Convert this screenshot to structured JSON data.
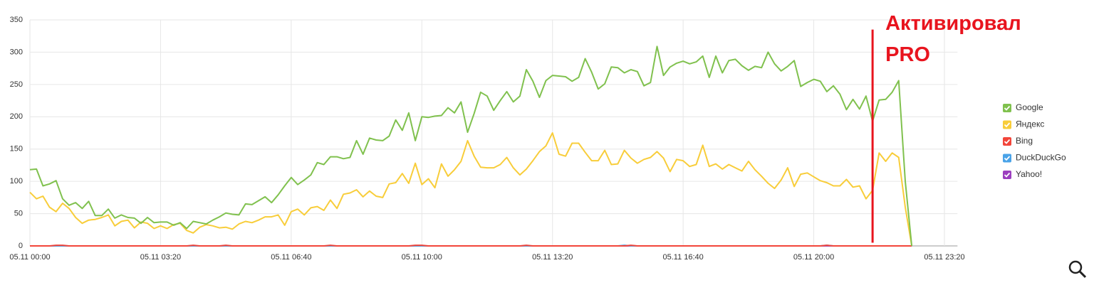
{
  "chart_data": {
    "type": "line",
    "x": [
      0,
      10,
      20,
      30,
      40,
      50,
      60,
      70,
      80,
      90,
      100,
      110,
      120,
      130,
      140,
      150,
      160,
      170,
      180,
      190,
      200,
      210,
      220,
      230,
      240,
      250,
      260,
      270,
      280,
      290,
      300,
      310,
      320,
      330,
      340,
      350,
      360,
      370,
      380,
      390,
      400,
      410,
      420,
      430,
      440,
      450,
      460,
      470,
      480,
      490,
      500,
      510,
      520,
      530,
      540,
      550,
      560,
      570,
      580,
      590,
      600,
      610,
      620,
      630,
      640,
      650,
      660,
      670,
      680,
      690,
      700,
      710,
      720,
      730,
      740,
      750,
      760,
      770,
      780,
      790,
      800,
      810,
      820,
      830,
      840,
      850,
      860,
      870,
      880,
      890,
      900,
      910,
      920,
      930,
      940,
      950,
      960,
      970,
      980,
      990,
      1000,
      1010,
      1020,
      1030,
      1040,
      1050,
      1060,
      1070,
      1080,
      1090,
      1100,
      1110,
      1120,
      1130,
      1140,
      1150,
      1160,
      1170,
      1180,
      1190,
      1200,
      1210,
      1220,
      1230,
      1240,
      1250,
      1260,
      1270,
      1280,
      1290,
      1300,
      1310,
      1320,
      1330,
      1340,
      1350
    ],
    "xlim": [
      0,
      1420
    ],
    "xticks": [
      {
        "value": 0,
        "label": "05.11 00:00"
      },
      {
        "value": 200,
        "label": "05.11 03:20"
      },
      {
        "value": 400,
        "label": "05.11 06:40"
      },
      {
        "value": 600,
        "label": "05.11 10:00"
      },
      {
        "value": 800,
        "label": "05.11 13:20"
      },
      {
        "value": 1000,
        "label": "05.11 16:40"
      },
      {
        "value": 1200,
        "label": "05.11 20:00"
      },
      {
        "value": 1400,
        "label": "05.11 23:20"
      }
    ],
    "ylim": [
      0,
      350
    ],
    "yticks": [
      0,
      50,
      100,
      150,
      200,
      250,
      300,
      350
    ],
    "grid": true,
    "legend": "right",
    "series": [
      {
        "name": "Google",
        "color": "#80c14e",
        "values": [
          118,
          119,
          93,
          96,
          101,
          73,
          63,
          67,
          58,
          69,
          47,
          47,
          57,
          43,
          48,
          44,
          43,
          35,
          44,
          36,
          37,
          37,
          32,
          36,
          27,
          38,
          36,
          34,
          40,
          45,
          51,
          49,
          48,
          65,
          64,
          70,
          76,
          67,
          79,
          93,
          106,
          95,
          102,
          110,
          129,
          126,
          138,
          138,
          135,
          137,
          163,
          142,
          167,
          164,
          163,
          170,
          195,
          179,
          206,
          163,
          200,
          199,
          201,
          202,
          214,
          206,
          223,
          176,
          205,
          238,
          232,
          210,
          225,
          239,
          223,
          232,
          273,
          255,
          230,
          256,
          264,
          263,
          262,
          255,
          261,
          290,
          269,
          243,
          251,
          277,
          276,
          268,
          273,
          270,
          248,
          253,
          309,
          264,
          277,
          283,
          286,
          282,
          285,
          294,
          261,
          294,
          268,
          287,
          289,
          279,
          272,
          278,
          276,
          300,
          282,
          271,
          278,
          287,
          247,
          253,
          258,
          255,
          239,
          248,
          235,
          211,
          227,
          212,
          232,
          193,
          226,
          227,
          238,
          256,
          100,
          0
        ]
      },
      {
        "name": "Яндекс",
        "color": "#f8cd3a",
        "values": [
          83,
          73,
          77,
          60,
          53,
          66,
          58,
          44,
          35,
          40,
          41,
          44,
          48,
          31,
          38,
          40,
          28,
          37,
          35,
          27,
          31,
          27,
          33,
          35,
          24,
          20,
          29,
          33,
          31,
          28,
          29,
          26,
          34,
          38,
          36,
          40,
          45,
          45,
          48,
          32,
          53,
          57,
          48,
          59,
          61,
          55,
          71,
          58,
          80,
          82,
          87,
          76,
          85,
          77,
          75,
          96,
          98,
          112,
          97,
          128,
          95,
          104,
          90,
          127,
          108,
          118,
          131,
          163,
          139,
          122,
          121,
          121,
          126,
          137,
          121,
          110,
          119,
          132,
          146,
          155,
          175,
          142,
          139,
          159,
          159,
          145,
          132,
          132,
          148,
          126,
          127,
          148,
          136,
          128,
          134,
          137,
          146,
          136,
          115,
          134,
          132,
          123,
          126,
          156,
          123,
          127,
          119,
          126,
          121,
          116,
          131,
          118,
          108,
          97,
          89,
          102,
          121,
          92,
          111,
          113,
          107,
          101,
          98,
          93,
          93,
          103,
          91,
          93,
          73,
          86,
          144,
          131,
          144,
          137,
          60,
          0
        ]
      },
      {
        "name": "Bing",
        "color": "#f2453a",
        "values": [
          0,
          0,
          0,
          0,
          1,
          1,
          0,
          0,
          0,
          0,
          0,
          0,
          0,
          0,
          0,
          0,
          0,
          0,
          0,
          0,
          0,
          0,
          0,
          0,
          0,
          1,
          0,
          0,
          0,
          0,
          1,
          0,
          0,
          0,
          0,
          0,
          0,
          0,
          0,
          0,
          0,
          0,
          0,
          0,
          0,
          0,
          1,
          0,
          0,
          0,
          0,
          0,
          0,
          0,
          0,
          0,
          0,
          0,
          0,
          1,
          1,
          0,
          0,
          0,
          0,
          0,
          0,
          0,
          0,
          0,
          0,
          0,
          0,
          0,
          0,
          0,
          1,
          0,
          0,
          0,
          0,
          0,
          0,
          0,
          0,
          0,
          0,
          0,
          0,
          0,
          0,
          0,
          1,
          0,
          0,
          0,
          0,
          0,
          0,
          0,
          0,
          0,
          0,
          0,
          0,
          0,
          0,
          0,
          0,
          0,
          0,
          0,
          0,
          0,
          0,
          0,
          0,
          0,
          0,
          0,
          0,
          0,
          1,
          0,
          0,
          0,
          0,
          0,
          0,
          0,
          0,
          0,
          0,
          0,
          0,
          0
        ]
      },
      {
        "name": "DuckDuckGo",
        "color": "#4aa3e8",
        "values": [
          0,
          0,
          0,
          0,
          0,
          0,
          0,
          0,
          0,
          0,
          0,
          0,
          0,
          0,
          0,
          0,
          0,
          0,
          0,
          0,
          0,
          0,
          0,
          0,
          0,
          0,
          0,
          0,
          0,
          0,
          0,
          0,
          0,
          0,
          0,
          0,
          0,
          0,
          0,
          0,
          0,
          0,
          0,
          0,
          0,
          0,
          0,
          0,
          0,
          0,
          0,
          0,
          0,
          0,
          0,
          0,
          0,
          0,
          0,
          0,
          0,
          0,
          0,
          0,
          0,
          0,
          0,
          0,
          0,
          0,
          0,
          0,
          0,
          0,
          0,
          0,
          0,
          0,
          0,
          0,
          0,
          0,
          0,
          0,
          0,
          0,
          0,
          0,
          0,
          0,
          0,
          1,
          0,
          0,
          0,
          0,
          0,
          0,
          0,
          0,
          0,
          0,
          0,
          0,
          0,
          0,
          0,
          0,
          0,
          0,
          0,
          0,
          0,
          0,
          0,
          0,
          0,
          0,
          0,
          0,
          0,
          0,
          1,
          0,
          0,
          0,
          0,
          0,
          0,
          0,
          0,
          0,
          0,
          0,
          0,
          0
        ]
      },
      {
        "name": "Yahoo!",
        "color": "#9c3fbf",
        "values": [
          0,
          0,
          0,
          0,
          0,
          0,
          0,
          0,
          0,
          0,
          0,
          0,
          0,
          0,
          0,
          0,
          0,
          0,
          0,
          0,
          0,
          0,
          0,
          0,
          0,
          0,
          0,
          0,
          0,
          0,
          0,
          0,
          0,
          0,
          0,
          0,
          0,
          0,
          0,
          0,
          0,
          0,
          0,
          0,
          0,
          0,
          0,
          0,
          0,
          0,
          0,
          0,
          0,
          0,
          0,
          0,
          0,
          0,
          0,
          0,
          0,
          0,
          0,
          0,
          0,
          0,
          0,
          0,
          0,
          0,
          0,
          0,
          0,
          0,
          0,
          0,
          0,
          0,
          0,
          0,
          0,
          0,
          0,
          0,
          0,
          0,
          0,
          0,
          0,
          0,
          0,
          0,
          0,
          0,
          0,
          0,
          0,
          0,
          0,
          0,
          0,
          0,
          0,
          0,
          0,
          0,
          0,
          0,
          0,
          0,
          0,
          0,
          0,
          0,
          0,
          0,
          0,
          0,
          0,
          0,
          0,
          0,
          0,
          0,
          0,
          0,
          0,
          0,
          0,
          0,
          0,
          0,
          0,
          0,
          0,
          0
        ]
      }
    ],
    "annotation": {
      "text_lines": [
        "Активировал",
        "PRO"
      ],
      "x": 1290,
      "y": [
        5,
        335
      ],
      "color": "#e8141e"
    }
  }
}
